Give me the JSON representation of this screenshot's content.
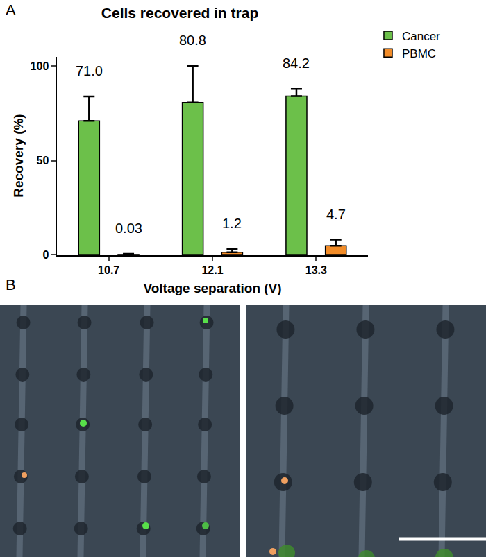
{
  "panel_labels": [
    "A",
    "B"
  ],
  "chart_data": {
    "type": "bar",
    "title": "Cells recovered in trap",
    "x_label": "Voltage separation (V)",
    "y_label": "Recovery (%)",
    "categories": [
      "10.7",
      "12.1",
      "13.3"
    ],
    "series": [
      {
        "name": "Cancer",
        "color": "#6cc04a",
        "values": [
          71.0,
          80.8,
          84.2
        ],
        "value_labels": [
          "71.0",
          "80.8",
          "84.2"
        ],
        "errors": [
          13.0,
          19.5,
          3.8
        ]
      },
      {
        "name": "PBMC",
        "color": "#f28c28",
        "values": [
          0.03,
          1.2,
          4.7
        ],
        "errors": [
          0.3,
          1.8,
          3.2
        ]
      }
    ],
    "ylim": [
      0,
      105
    ],
    "yticks": [
      0,
      50,
      100
    ],
    "grid": false,
    "legend": "top right",
    "data_labels": true
  }
}
